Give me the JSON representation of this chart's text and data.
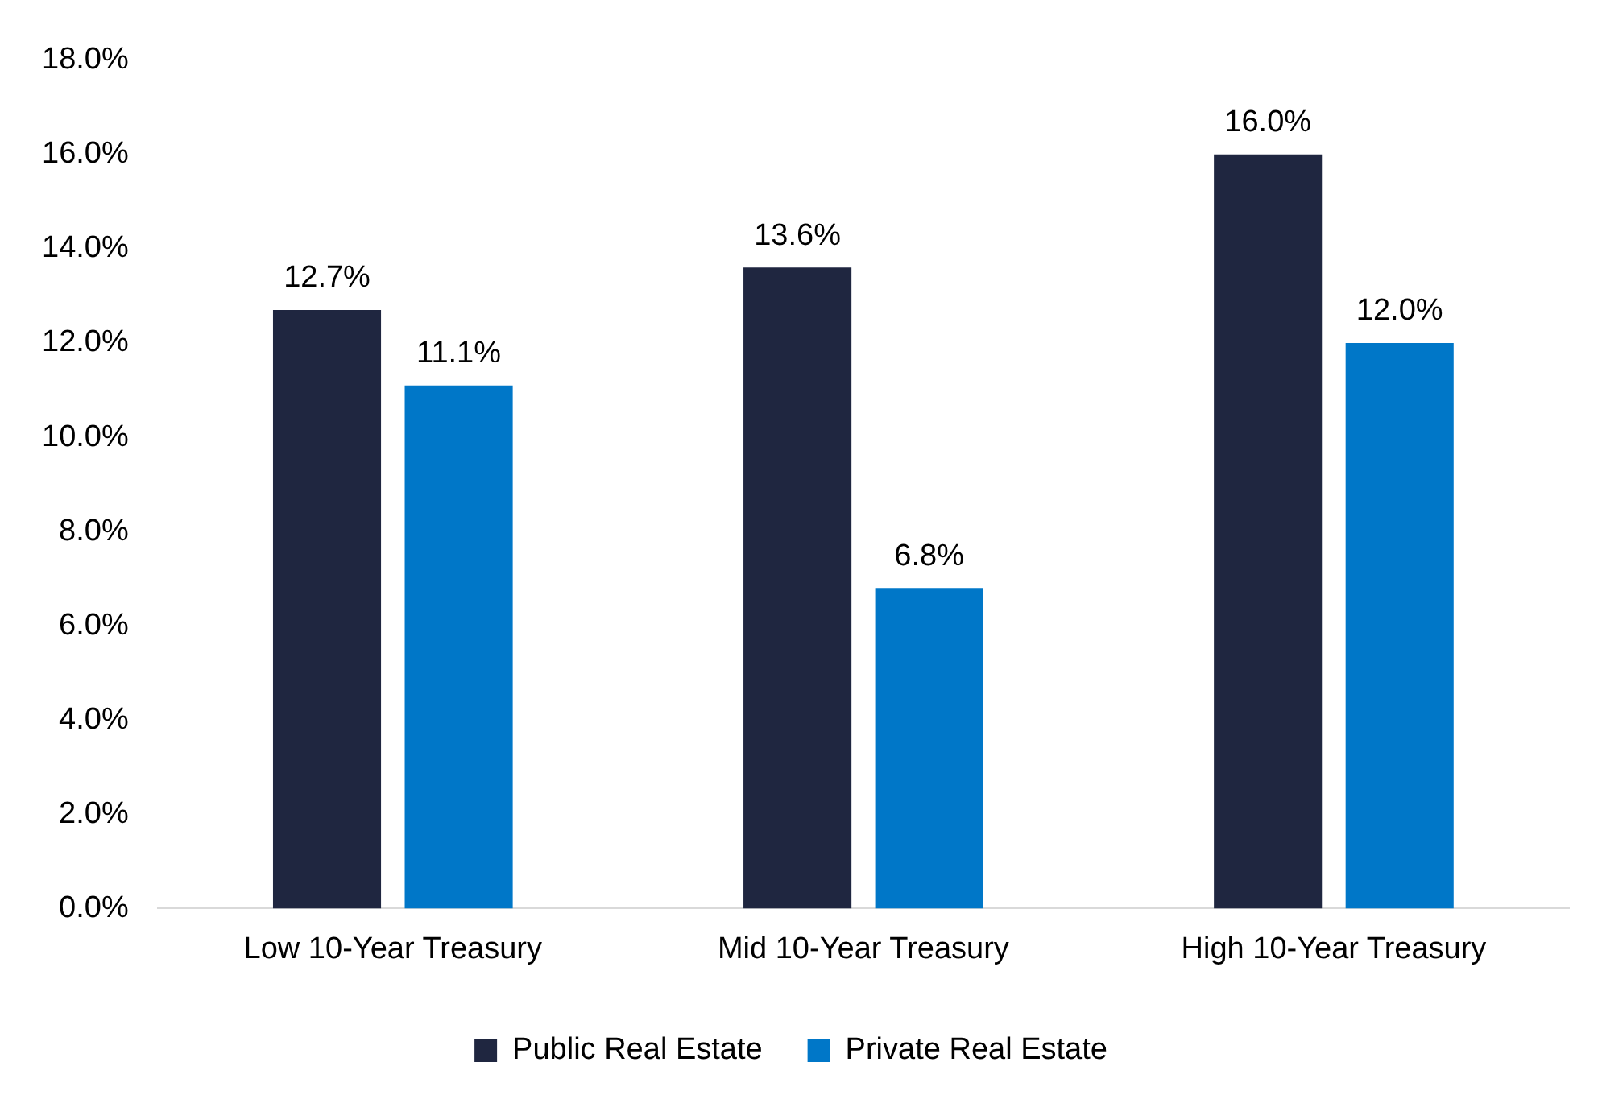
{
  "chart_data": {
    "type": "bar",
    "categories": [
      "Low 10-Year Treasury",
      "Mid 10-Year Treasury",
      "High 10-Year Treasury"
    ],
    "series": [
      {
        "name": "Public Real Estate",
        "color": "#1f2640",
        "values": [
          12.7,
          13.6,
          16.0
        ],
        "value_labels": [
          "12.7%",
          "13.6%",
          "16.0%"
        ]
      },
      {
        "name": "Private Real Estate",
        "color": "#0077c8",
        "values": [
          11.1,
          6.8,
          12.0
        ],
        "value_labels": [
          "11.1%",
          "6.8%",
          "12.0%"
        ]
      }
    ],
    "ylim": [
      0,
      18
    ],
    "yticks": [
      {
        "value": 0,
        "label": "0.0%"
      },
      {
        "value": 2,
        "label": "2.0%"
      },
      {
        "value": 4,
        "label": "4.0%"
      },
      {
        "value": 6,
        "label": "6.0%"
      },
      {
        "value": 8,
        "label": "8.0%"
      },
      {
        "value": 10,
        "label": "10.0%"
      },
      {
        "value": 12,
        "label": "12.0%"
      },
      {
        "value": 14,
        "label": "14.0%"
      },
      {
        "value": 16,
        "label": "16.0%"
      },
      {
        "value": 18,
        "label": "18.0%"
      }
    ],
    "grid": false,
    "legend": "bottom"
  }
}
